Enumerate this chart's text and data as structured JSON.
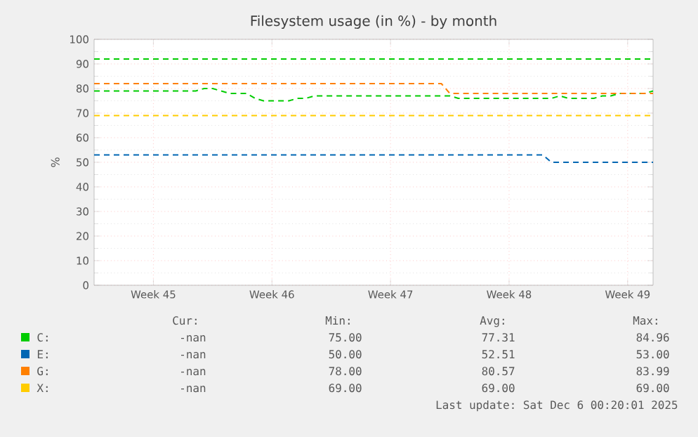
{
  "chart_data": {
    "type": "line",
    "title": "Filesystem usage (in %) - by month",
    "ylabel": "%",
    "categories": [
      null,
      null,
      null,
      null,
      null,
      null,
      null,
      "Week 45",
      null,
      null,
      null,
      null,
      null,
      null,
      null,
      null,
      null,
      null,
      null,
      null,
      null,
      "Week 46",
      null,
      null,
      null,
      null,
      null,
      null,
      null,
      null,
      null,
      null,
      null,
      null,
      null,
      "Week 47",
      null,
      null,
      null,
      null,
      null,
      null,
      null,
      null,
      null,
      null,
      null,
      null,
      null,
      "Week 48",
      null,
      null,
      null,
      null,
      null,
      null,
      null,
      null,
      null,
      null,
      null,
      null,
      null,
      "Week 49",
      null,
      null,
      null
    ],
    "ylim": [
      0,
      100
    ],
    "yticks": [
      0,
      10,
      20,
      30,
      40,
      50,
      60,
      70,
      80,
      90,
      100
    ],
    "grid": true,
    "legend": "bottom",
    "marker": "none",
    "line_style": "dashed",
    "series": [
      {
        "name": "C:",
        "color": "#00cc00",
        "values": [
          79,
          79,
          79,
          79,
          79,
          79,
          79,
          79,
          79,
          79,
          79,
          79,
          79,
          80,
          80,
          79,
          78,
          78,
          78,
          76,
          75,
          75,
          75,
          75,
          76,
          76,
          77,
          77,
          77,
          77,
          77,
          77,
          77,
          77,
          77,
          77,
          77,
          77,
          77,
          77,
          77,
          77,
          77,
          76,
          76,
          76,
          76,
          76,
          76,
          76,
          76,
          76,
          76,
          76,
          76,
          77,
          76,
          76,
          76,
          76,
          77,
          77,
          78,
          78,
          78,
          78,
          79
        ]
      },
      {
        "name": "E:",
        "color": "#0066b3",
        "values": [
          53,
          53,
          53,
          53,
          53,
          53,
          53,
          53,
          53,
          53,
          53,
          53,
          53,
          53,
          53,
          53,
          53,
          53,
          53,
          53,
          53,
          53,
          53,
          53,
          53,
          53,
          53,
          53,
          53,
          53,
          53,
          53,
          53,
          53,
          53,
          53,
          53,
          53,
          53,
          53,
          53,
          53,
          53,
          53,
          53,
          53,
          53,
          53,
          53,
          53,
          53,
          53,
          53,
          53,
          50,
          50,
          50,
          50,
          50,
          50,
          50,
          50,
          50,
          50,
          50,
          50,
          50
        ]
      },
      {
        "name": "G:",
        "color": "#ff8000",
        "values": [
          82,
          82,
          82,
          82,
          82,
          82,
          82,
          82,
          82,
          82,
          82,
          82,
          82,
          82,
          82,
          82,
          82,
          82,
          82,
          82,
          82,
          82,
          82,
          82,
          82,
          82,
          82,
          82,
          82,
          82,
          82,
          82,
          82,
          82,
          82,
          82,
          82,
          82,
          82,
          82,
          82,
          82,
          78,
          78,
          78,
          78,
          78,
          78,
          78,
          78,
          78,
          78,
          78,
          78,
          78,
          78,
          78,
          78,
          78,
          78,
          78,
          78,
          78,
          78,
          78,
          78,
          78
        ]
      },
      {
        "name": "X:",
        "color": "#ffcc00",
        "values": [
          69,
          69,
          69,
          69,
          69,
          69,
          69,
          69,
          69,
          69,
          69,
          69,
          69,
          69,
          69,
          69,
          69,
          69,
          69,
          69,
          69,
          69,
          69,
          69,
          69,
          69,
          69,
          69,
          69,
          69,
          69,
          69,
          69,
          69,
          69,
          69,
          69,
          69,
          69,
          69,
          69,
          69,
          69,
          69,
          69,
          69,
          69,
          69,
          69,
          69,
          69,
          69,
          69,
          69,
          69,
          69,
          69,
          69,
          69,
          69,
          69,
          69,
          69,
          69,
          69,
          69,
          69
        ]
      }
    ],
    "ref_lines": [
      {
        "axis": "y",
        "value": 92,
        "color": "#00cc00",
        "line_style": "dashed"
      }
    ],
    "annotations": [
      "Cur:",
      "Min:",
      "Avg:",
      "Max:",
      "-nan",
      "75.00",
      "77.31",
      "84.96",
      "-nan",
      "50.00",
      "52.51",
      "53.00",
      "-nan",
      "78.00",
      "80.57",
      "83.99",
      "-nan",
      "69.00",
      "69.00",
      "69.00",
      "Last update: Sat Dec  6 00:20:01 2025"
    ]
  }
}
